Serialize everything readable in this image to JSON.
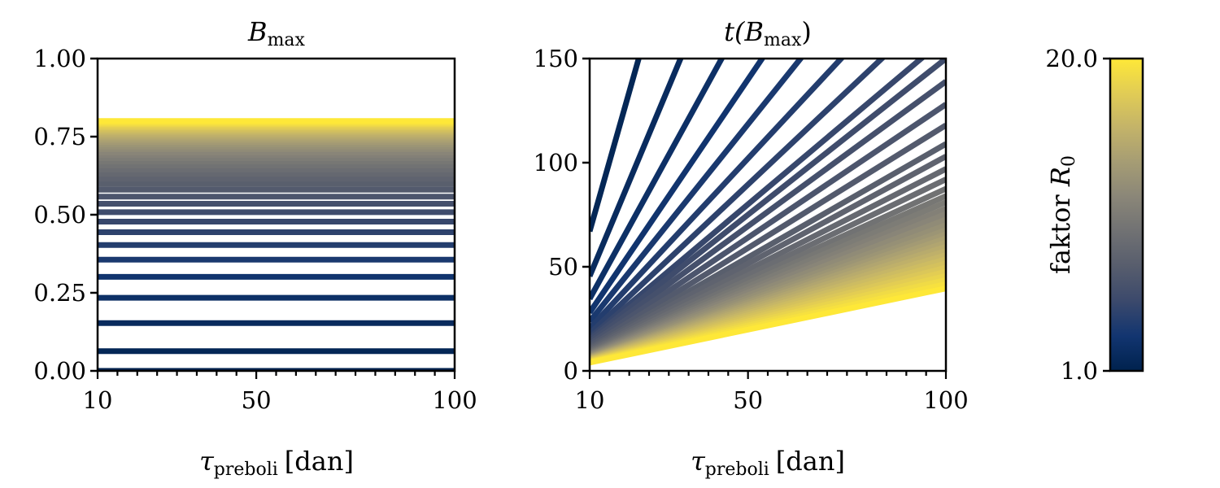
{
  "chart_data": [
    {
      "type": "line",
      "title": "B_max",
      "title_main": "B",
      "title_sub": "max",
      "xlabel": "τ_preboli [dan]",
      "xlabel_symbol": "τ",
      "xlabel_sub": "preboli",
      "xlabel_unit": "[dan]",
      "ylabel": "",
      "xlim": [
        10,
        100
      ],
      "ylim": [
        0,
        1
      ],
      "xticks": [
        10,
        50,
        100
      ],
      "xtick_labels": [
        "10",
        "50",
        "100"
      ],
      "xminor_step": 5,
      "yticks": [
        0,
        0.25,
        0.5,
        0.75,
        1.0
      ],
      "ytick_labels": [
        "0.00",
        "0.25",
        "0.50",
        "0.75",
        "1.00"
      ],
      "grid": false,
      "color_by": "R0",
      "series_description": "One horizontal line per R0 value (1.0 to 20.0, step 0.5); B_max independent of τ",
      "R0": [
        1.0,
        1.5,
        2.0,
        2.5,
        3.0,
        3.5,
        4.0,
        4.5,
        5.0,
        5.5,
        6.0,
        6.5,
        7.0,
        7.5,
        8.0,
        8.5,
        9.0,
        9.5,
        10.0,
        10.5,
        11.0,
        11.5,
        12.0,
        12.5,
        13.0,
        13.5,
        14.0,
        14.5,
        15.0,
        15.5,
        16.0,
        16.5,
        17.0,
        17.5,
        18.0,
        18.5,
        19.0,
        19.5,
        20.0
      ],
      "B_max": [
        0.0,
        0.063,
        0.153,
        0.234,
        0.301,
        0.356,
        0.403,
        0.444,
        0.478,
        0.508,
        0.535,
        0.558,
        0.58,
        0.598,
        0.615,
        0.631,
        0.645,
        0.658,
        0.67,
        0.681,
        0.691,
        0.7,
        0.71,
        0.718,
        0.726,
        0.733,
        0.74,
        0.747,
        0.753,
        0.759,
        0.765,
        0.77,
        0.775,
        0.78,
        0.784,
        0.789,
        0.792,
        0.796,
        0.8
      ]
    },
    {
      "type": "line",
      "title": "t(B_max)",
      "title_prefix": "t(",
      "title_main": "B",
      "title_sub": "max",
      "title_suffix": ")",
      "xlabel": "τ_preboli [dan]",
      "xlabel_symbol": "τ",
      "xlabel_sub": "preboli",
      "xlabel_unit": "[dan]",
      "ylabel": "",
      "xlim": [
        10,
        100
      ],
      "ylim": [
        0,
        150
      ],
      "xticks": [
        10,
        50,
        100
      ],
      "xtick_labels": [
        "10",
        "50",
        "100"
      ],
      "xminor_step": 5,
      "yticks": [
        0,
        50,
        100,
        150
      ],
      "ytick_labels": [
        "0",
        "50",
        "100",
        "150"
      ],
      "grid": false,
      "color_by": "R0",
      "series_description": "One straight line per R0 value, t(B_max) = k(R0) · τ; R0 = 1.0 line lies outside the plotted range",
      "R0": [
        1.5,
        2.0,
        2.5,
        3.0,
        3.5,
        4.0,
        4.5,
        5.0,
        5.5,
        6.0,
        6.5,
        7.0,
        7.5,
        8.0,
        8.5,
        9.0,
        9.5,
        10.0,
        10.5,
        11.0,
        11.5,
        12.0,
        12.5,
        13.0,
        13.5,
        14.0,
        14.5,
        15.0,
        15.5,
        16.0,
        16.5,
        17.0,
        17.5,
        18.0,
        18.5,
        19.0,
        19.5,
        20.0
      ],
      "t_per_tau": [
        6.7,
        4.55,
        3.46,
        2.8,
        2.37,
        2.04,
        1.79,
        1.6,
        1.5,
        1.39,
        1.28,
        1.18,
        1.09,
        1.03,
        0.97,
        0.92,
        0.875,
        0.84,
        0.81,
        0.78,
        0.754,
        0.727,
        0.7,
        0.676,
        0.656,
        0.636,
        0.616,
        0.596,
        0.576,
        0.556,
        0.536,
        0.516,
        0.496,
        0.476,
        0.456,
        0.436,
        0.416,
        0.396
      ]
    },
    {
      "type": "colorbar",
      "colormap": "cividis",
      "label": "faktor R_0",
      "label_text": "faktor ",
      "label_symbol": "R",
      "label_sub": "0",
      "range": [
        1.0,
        20.0
      ],
      "ticks": [
        1.0,
        20.0
      ],
      "tick_labels": [
        "1.0",
        "20.0"
      ],
      "colors": [
        "#00224e",
        "#123570",
        "#3b496c",
        "#575d6d",
        "#707173",
        "#8a8678",
        "#a59c74",
        "#c3b369",
        "#e1cc55",
        "#fee838"
      ]
    }
  ]
}
